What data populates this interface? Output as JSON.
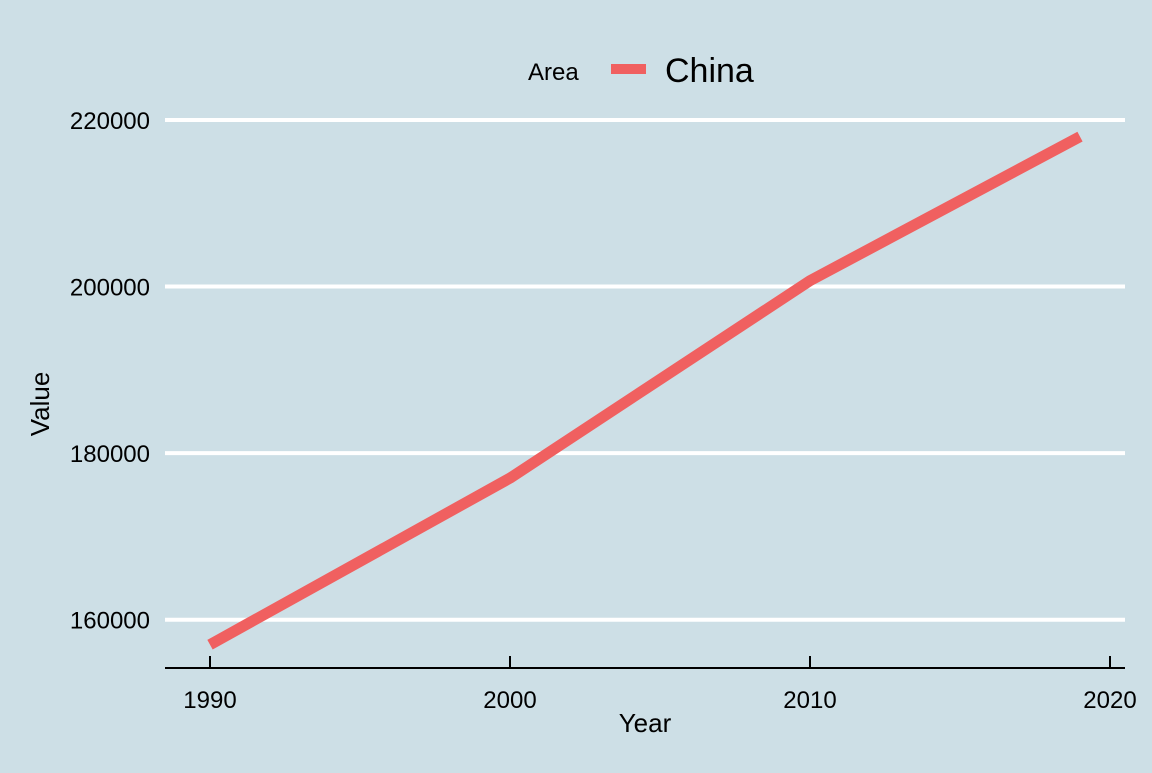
{
  "chart_data": {
    "type": "line",
    "title": "",
    "xlabel": "Year",
    "ylabel": "Value",
    "legend": {
      "title": "Area",
      "placement": "top-center",
      "entries": [
        "China"
      ]
    },
    "x_ticks": [
      "1990",
      "2000",
      "2010",
      "2020"
    ],
    "y_ticks": [
      "160000",
      "180000",
      "200000",
      "220000"
    ],
    "xlim": [
      1988.5,
      2020.5
    ],
    "ylim": [
      154200,
      229600
    ],
    "grid": "horizontal major lines",
    "series": [
      {
        "name": "China",
        "color": "#f06060",
        "x": [
          1990,
          2000,
          2010,
          2019
        ],
        "y": [
          157000,
          177000,
          200700,
          218000
        ]
      }
    ]
  },
  "colors": {
    "background": "#cddfe6",
    "grid": "#ffffff",
    "axis": "#000000"
  }
}
